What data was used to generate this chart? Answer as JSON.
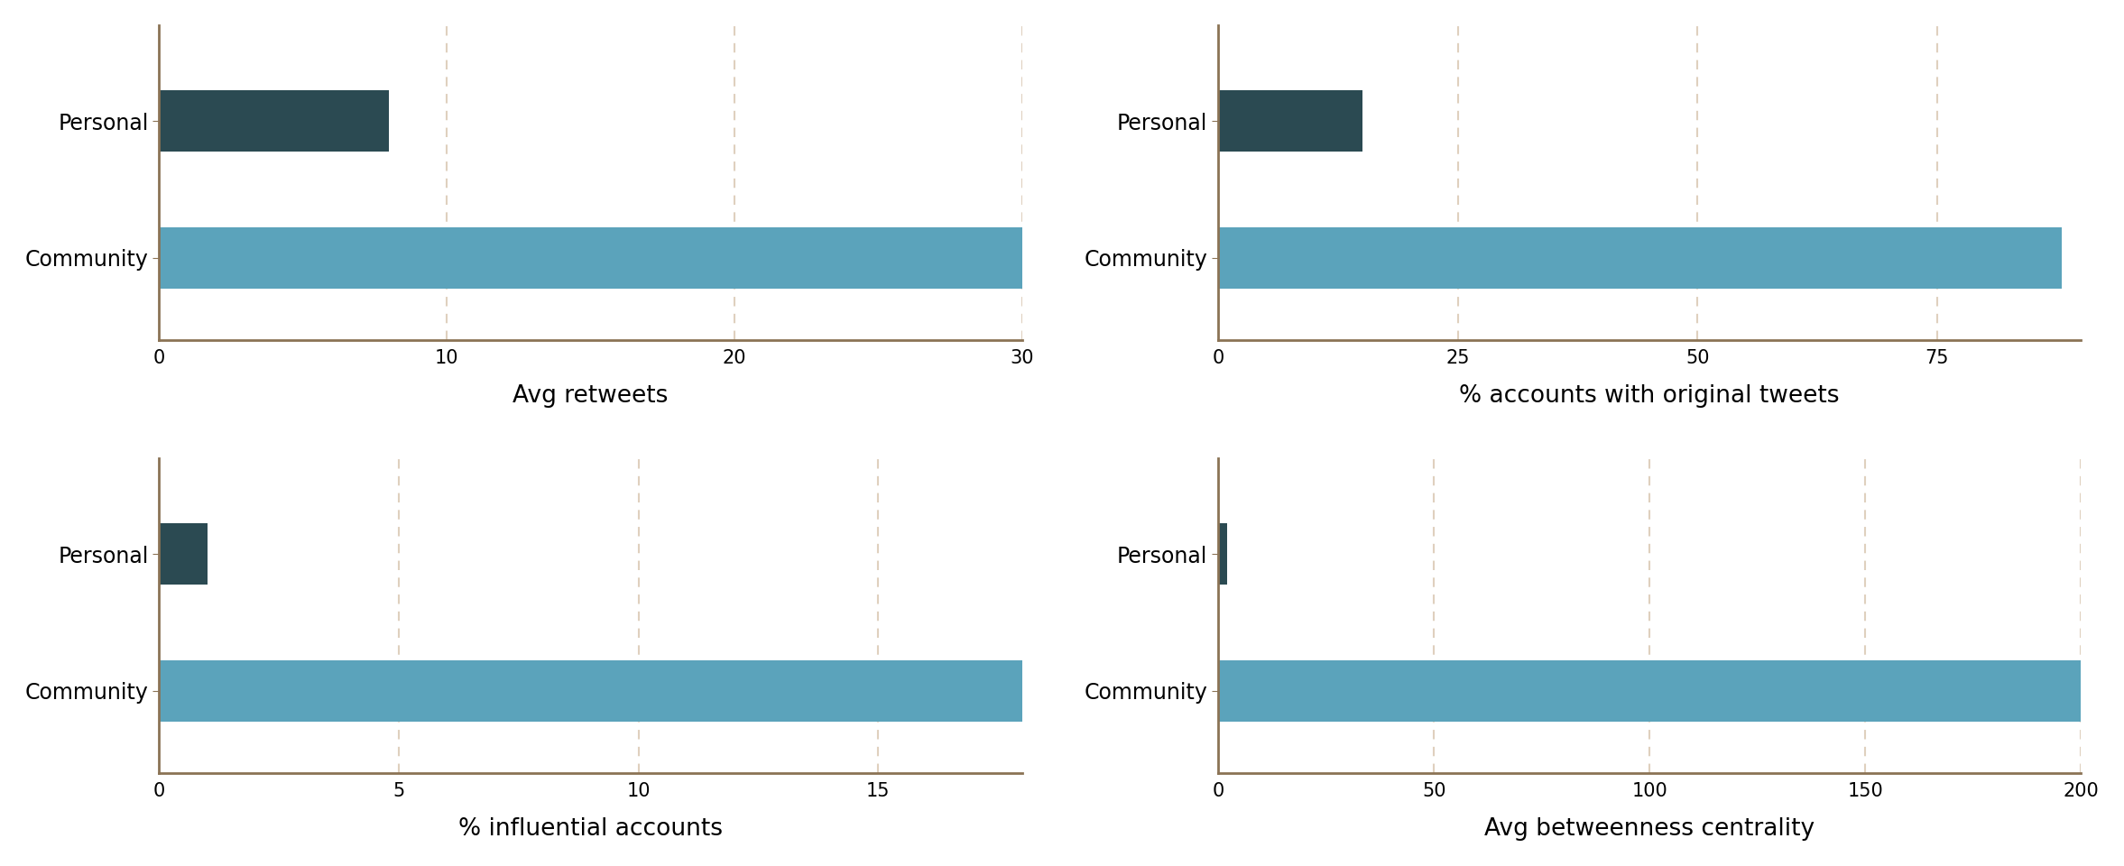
{
  "subplots": [
    {
      "title": "Avg retweets",
      "categories": [
        "Community",
        "Personal"
      ],
      "values": [
        30,
        8
      ],
      "colors": [
        "#5ba3bb",
        "#2b4a52"
      ],
      "xlim": [
        0,
        30
      ],
      "xticks": [
        0,
        10,
        20,
        30
      ]
    },
    {
      "title": "% accounts with original tweets",
      "categories": [
        "Community",
        "Personal"
      ],
      "values": [
        88,
        15
      ],
      "colors": [
        "#5ba3bb",
        "#2b4a52"
      ],
      "xlim": [
        0,
        90
      ],
      "xticks": [
        0,
        25,
        50,
        75
      ]
    },
    {
      "title": "% influential accounts",
      "categories": [
        "Community",
        "Personal"
      ],
      "values": [
        18,
        1
      ],
      "colors": [
        "#5ba3bb",
        "#2b4a52"
      ],
      "xlim": [
        0,
        18
      ],
      "xticks": [
        0,
        5,
        10,
        15
      ]
    },
    {
      "title": "Avg betweenness centrality",
      "categories": [
        "Community",
        "Personal"
      ],
      "values": [
        200,
        2
      ],
      "colors": [
        "#5ba3bb",
        "#2b4a52"
      ],
      "xlim": [
        0,
        200
      ],
      "xticks": [
        0,
        50,
        100,
        150,
        200
      ]
    }
  ],
  "bar_height": 0.45,
  "personal_color": "#2b4a52",
  "community_color": "#5ba3bb",
  "axis_color": "#8b7355",
  "grid_color": "#dfd0be",
  "label_fontsize": 17,
  "tick_fontsize": 15,
  "title_fontsize": 19,
  "background_color": "#ffffff"
}
